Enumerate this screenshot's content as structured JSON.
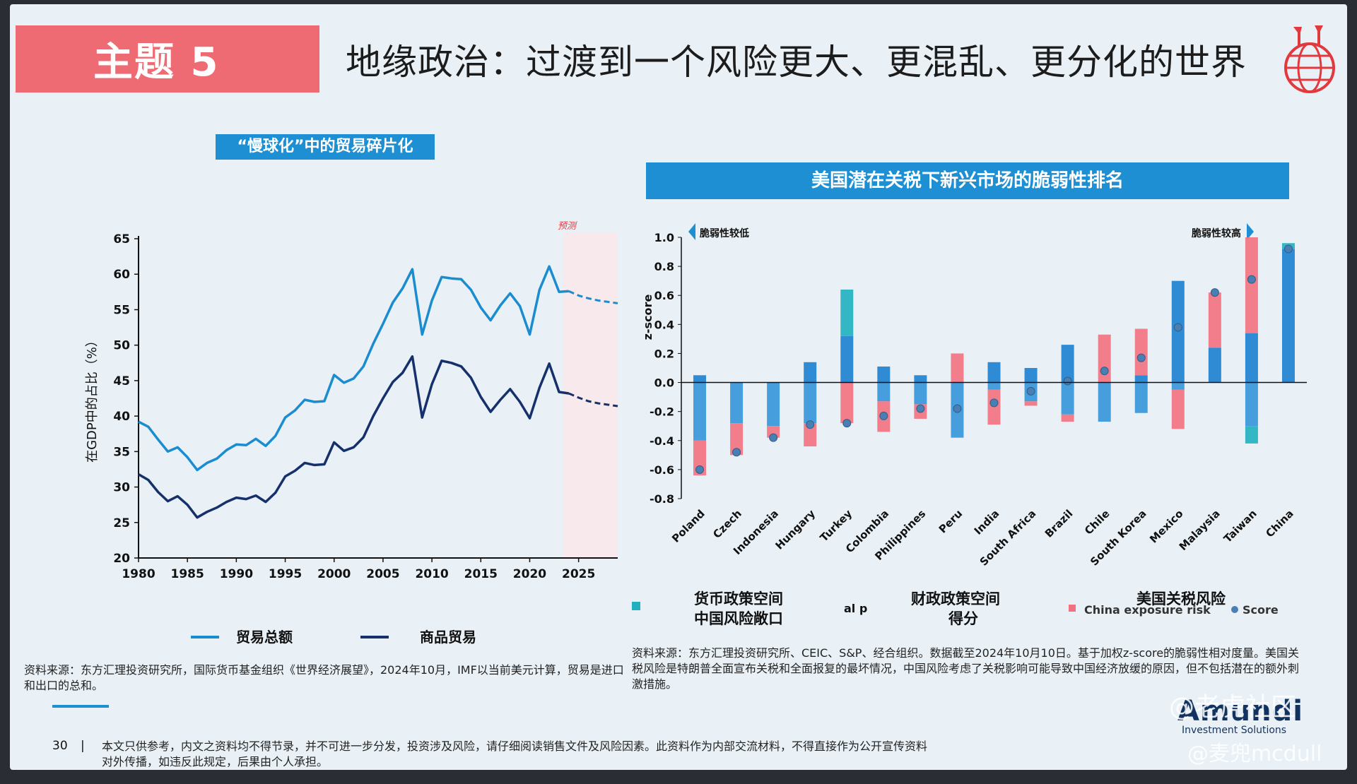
{
  "header": {
    "badge": "主题 5",
    "title": "地缘政治：过渡到一个风险更大、更混乱、更分化的世界"
  },
  "left_panel": {
    "title": "“慢球化”中的贸易碎片化",
    "forecast_label": "预测",
    "legend": [
      "贸易总额",
      "商品贸易"
    ],
    "source": "资料来源：东方汇理投资研究所，国际货币基金组织《世界经济展望》，2024年10月，IMF以当前美元计算，贸易是进口和出口的总和。"
  },
  "right_panel": {
    "title": "美国潜在关税下新兴市场的脆弱性排名",
    "low_label": "脆弱性较低",
    "high_label": "脆弱性较高",
    "legend_overlay": [
      {
        "line1": "货币政策空间",
        "line2": "中国风险敞口"
      },
      {
        "line1": "财政政策空间",
        "line2": "得分"
      },
      {
        "line1": "美国关税风险",
        "line2": ""
      }
    ],
    "legend_fragments": [
      "al p",
      "China exposure risk",
      "Score"
    ],
    "source": "资料来源：东方汇理投资研究所、CEIC、S&P、经合组织。数据截至2024年10月10日。基于加权z-score的脆弱性相对度量。美国关税风险是特朗普全面宣布关税和全面报复的最坏情况，中国风险考虑了关税影响可能导致中国经济放缓的原因，但不包括潜在的额外刺激措施。"
  },
  "footer": {
    "page_number": "30",
    "separator": "|",
    "disclaimer_line1": "本文只供参考，内文之资料均不得节录，并不可进一步分发，投资涉及风险，请仔细阅读销售文件及风险因素。此资料作为内部交流材料，不得直接作为公开宣传资料",
    "disclaimer_line2": "对外传播，如违反此规定，后果由个人承担。",
    "brand": "Amundi",
    "brand_sub": "Investment Solutions",
    "watermark1": "@老虎社区",
    "watermark2": "@麦兜mcdull"
  },
  "colors": {
    "accent_red": "#ef6b73",
    "title_blue": "#1e8fd2",
    "trade_total": "#1a8ccf",
    "goods_trade": "#16306b",
    "bar_blue": "#1b7fd0",
    "bar_pink": "#f3717f",
    "bar_teal": "#20b0c0",
    "score_dot": "#4a7fb3"
  },
  "chart_data": [
    {
      "type": "line",
      "ylabel": "在GDP中的占比（%）",
      "xlabel": "",
      "xlim": [
        1980,
        2029
      ],
      "ylim": [
        20,
        65
      ],
      "yticks": [
        20,
        25,
        30,
        35,
        40,
        45,
        50,
        55,
        60,
        65
      ],
      "xticks": [
        1980,
        1985,
        1990,
        1995,
        2000,
        2005,
        2010,
        2015,
        2020,
        2025
      ],
      "forecast_from": 2024,
      "series": [
        {
          "name": "贸易总额",
          "x": [
            1980,
            1981,
            1982,
            1983,
            1984,
            1985,
            1986,
            1987,
            1988,
            1989,
            1990,
            1991,
            1992,
            1993,
            1994,
            1995,
            1996,
            1997,
            1998,
            1999,
            2000,
            2001,
            2002,
            2003,
            2004,
            2005,
            2006,
            2007,
            2008,
            2009,
            2010,
            2011,
            2012,
            2013,
            2014,
            2015,
            2016,
            2017,
            2018,
            2019,
            2020,
            2021,
            2022,
            2023,
            2024,
            2025,
            2026,
            2027,
            2028,
            2029
          ],
          "y": [
            39.2,
            38.5,
            36.7,
            35.0,
            35.6,
            34.2,
            32.4,
            33.4,
            34.0,
            35.2,
            36.0,
            35.9,
            36.8,
            35.8,
            37.2,
            39.8,
            40.8,
            42.3,
            42.0,
            42.1,
            45.8,
            44.7,
            45.3,
            47.0,
            50.2,
            53.0,
            56.0,
            58.0,
            60.7,
            51.5,
            56.3,
            59.6,
            59.4,
            59.3,
            57.8,
            55.3,
            53.5,
            55.6,
            57.3,
            55.5,
            51.5,
            57.8,
            61.1,
            57.5,
            57.6,
            57.0,
            56.6,
            56.3,
            56.1,
            55.9
          ]
        },
        {
          "name": "商品贸易",
          "x": [
            1980,
            1981,
            1982,
            1983,
            1984,
            1985,
            1986,
            1987,
            1988,
            1989,
            1990,
            1991,
            1992,
            1993,
            1994,
            1995,
            1996,
            1997,
            1998,
            1999,
            2000,
            2001,
            2002,
            2003,
            2004,
            2005,
            2006,
            2007,
            2008,
            2009,
            2010,
            2011,
            2012,
            2013,
            2014,
            2015,
            2016,
            2017,
            2018,
            2019,
            2020,
            2021,
            2022,
            2023,
            2024,
            2025,
            2026,
            2027,
            2028,
            2029
          ],
          "y": [
            31.8,
            31.0,
            29.3,
            28.0,
            28.7,
            27.5,
            25.7,
            26.5,
            27.1,
            27.9,
            28.5,
            28.3,
            28.8,
            27.9,
            29.2,
            31.5,
            32.3,
            33.4,
            33.1,
            33.2,
            36.3,
            35.1,
            35.6,
            37.0,
            40.0,
            42.5,
            44.8,
            46.1,
            48.4,
            39.8,
            44.5,
            47.8,
            47.5,
            47.0,
            45.4,
            42.7,
            40.6,
            42.3,
            43.8,
            42.0,
            39.7,
            44.0,
            47.4,
            43.4,
            43.2,
            42.6,
            42.1,
            41.8,
            41.6,
            41.4
          ]
        }
      ]
    },
    {
      "type": "bar",
      "ylabel": "z-score",
      "xlabel": "",
      "ylim": [
        -0.8,
        1.0
      ],
      "yticks": [
        -0.8,
        -0.6,
        -0.4,
        -0.2,
        0.0,
        0.2,
        0.4,
        0.6,
        0.8,
        1.0
      ],
      "categories": [
        "Poland",
        "Czech",
        "Indonesia",
        "Hungary",
        "Turkey",
        "Colombia",
        "Philippines",
        "Peru",
        "India",
        "South Africa",
        "Brazil",
        "Chile",
        "South Korea",
        "Mexico",
        "Malaysia",
        "Taiwan",
        "China"
      ],
      "series": [
        {
          "name": "货币政策空间",
          "values": [
            0.05,
            0.0,
            0.0,
            0.14,
            0.32,
            0.11,
            0.05,
            0.0,
            0.14,
            0.1,
            0.26,
            0.0,
            0.05,
            0.7,
            0.24,
            0.34,
            0.92
          ]
        },
        {
          "name": "财政政策空间",
          "values": [
            -0.4,
            -0.28,
            -0.3,
            -0.28,
            0.0,
            -0.13,
            -0.15,
            -0.38,
            -0.05,
            -0.13,
            -0.22,
            -0.27,
            -0.21,
            -0.05,
            0.0,
            -0.3,
            0.0
          ]
        },
        {
          "name": "美国关税风险",
          "values": [
            -0.24,
            -0.22,
            -0.08,
            -0.16,
            -0.28,
            -0.21,
            -0.1,
            0.2,
            -0.24,
            -0.03,
            -0.05,
            0.33,
            0.32,
            -0.27,
            0.38,
            0.66,
            0.0
          ]
        },
        {
          "name": "中国风险敞口",
          "values": [
            0.0,
            0.0,
            0.0,
            0.0,
            0.32,
            0.0,
            0.0,
            0.0,
            0.0,
            0.0,
            0.0,
            0.0,
            0.0,
            0.0,
            0.0,
            -0.12,
            0.04
          ]
        }
      ],
      "score": [
        -0.6,
        -0.48,
        -0.38,
        -0.29,
        -0.28,
        -0.23,
        -0.18,
        -0.18,
        -0.14,
        -0.06,
        0.01,
        0.08,
        0.17,
        0.38,
        0.62,
        0.71,
        0.92
      ]
    }
  ]
}
